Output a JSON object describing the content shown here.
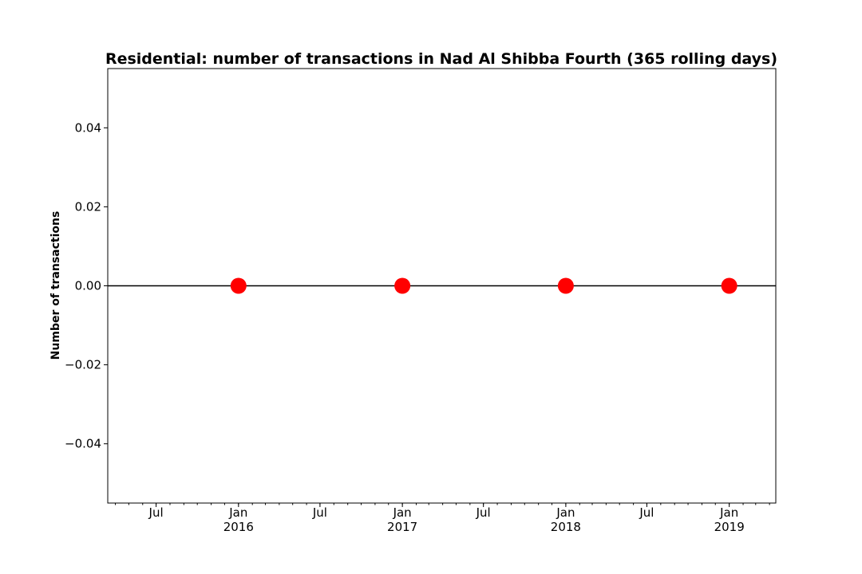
{
  "chart_data": {
    "type": "line",
    "title": "Residential: number of transactions in Nad Al Shibba Fourth (365 rolling days)",
    "xlabel": "",
    "ylabel": "Number of transactions",
    "x_range": [
      "2015-03-15",
      "2019-04-15"
    ],
    "ylim": [
      -0.055,
      0.055
    ],
    "y_ticks": [
      -0.04,
      -0.02,
      0.0,
      0.02,
      0.04
    ],
    "y_tick_labels": [
      "−0.04",
      "−0.02",
      "0.00",
      "0.02",
      "0.04"
    ],
    "x_ticks": [
      {
        "date": "2015-07-01",
        "label": "Jul",
        "year": ""
      },
      {
        "date": "2016-01-01",
        "label": "Jan",
        "year": "2016"
      },
      {
        "date": "2016-07-01",
        "label": "Jul",
        "year": ""
      },
      {
        "date": "2017-01-01",
        "label": "Jan",
        "year": "2017"
      },
      {
        "date": "2017-07-01",
        "label": "Jul",
        "year": ""
      },
      {
        "date": "2018-01-01",
        "label": "Jan",
        "year": "2018"
      },
      {
        "date": "2018-07-01",
        "label": "Jul",
        "year": ""
      },
      {
        "date": "2019-01-01",
        "label": "Jan",
        "year": "2019"
      }
    ],
    "series": [
      {
        "x": [
          "2015-03-15",
          "2019-04-15"
        ],
        "y": [
          0,
          0
        ],
        "color": "#000000",
        "marker": "none"
      },
      {
        "x": [
          "2016-01-01",
          "2017-01-01",
          "2018-01-01",
          "2019-01-01"
        ],
        "y": [
          0,
          0,
          0,
          0
        ],
        "color": "#ff0000",
        "marker": "circle"
      }
    ],
    "grid": false,
    "legend": "none"
  }
}
